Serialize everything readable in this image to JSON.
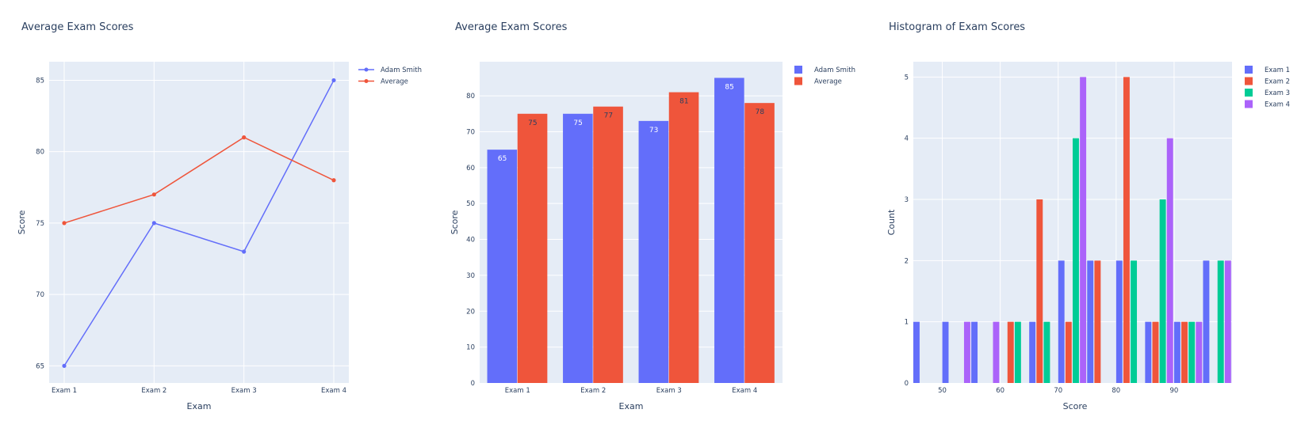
{
  "chart_data": [
    {
      "type": "line",
      "title": "Average Exam Scores",
      "xlabel": "Exam",
      "ylabel": "Score",
      "categories": [
        "Exam 1",
        "Exam 2",
        "Exam 3",
        "Exam 4"
      ],
      "ylim": [
        63.8,
        86.3
      ],
      "yticks": [
        65,
        70,
        75,
        80,
        85
      ],
      "series": [
        {
          "name": "Adam Smith",
          "values": [
            65,
            75,
            73,
            85
          ],
          "color": "#636efa"
        },
        {
          "name": "Average",
          "values": [
            75,
            77,
            81,
            78
          ],
          "color": "#ef553b"
        }
      ],
      "grid": true,
      "legend": "top-right-outside"
    },
    {
      "type": "bar",
      "title": "Average Exam Scores",
      "xlabel": "Exam",
      "ylabel": "Score",
      "categories": [
        "Exam 1",
        "Exam 2",
        "Exam 3",
        "Exam 4"
      ],
      "ylim": [
        0,
        89.5
      ],
      "yticks": [
        0,
        10,
        20,
        30,
        40,
        50,
        60,
        70,
        80
      ],
      "series": [
        {
          "name": "Adam Smith",
          "values": [
            65,
            75,
            73,
            85
          ],
          "color": "#636efa",
          "label_color": "#ffffff"
        },
        {
          "name": "Average",
          "values": [
            75,
            77,
            81,
            78
          ],
          "color": "#ef553b",
          "label_color": "#2a3f5f"
        }
      ],
      "grid": true,
      "legend": "top-right-outside"
    },
    {
      "type": "bar",
      "subtype": "histogram",
      "title": "Histogram of Exam Scores",
      "xlabel": "Score",
      "ylabel": "Count",
      "xlim": [
        45,
        100
      ],
      "xticks": [
        50,
        60,
        70,
        80,
        90
      ],
      "ylim": [
        0,
        5.25
      ],
      "yticks": [
        0,
        1,
        2,
        3,
        4,
        5
      ],
      "bin_starts": [
        45,
        50,
        55,
        60,
        65,
        70,
        75,
        80,
        85,
        90,
        95
      ],
      "bin_width": 5,
      "series": [
        {
          "name": "Exam 1",
          "values": [
            1,
            1,
            1,
            0,
            1,
            2,
            2,
            2,
            1,
            1,
            2
          ],
          "color": "#636efa"
        },
        {
          "name": "Exam 2",
          "values": [
            0,
            0,
            0,
            1,
            3,
            1,
            2,
            5,
            1,
            1,
            0
          ],
          "color": "#ef553b"
        },
        {
          "name": "Exam 3",
          "values": [
            0,
            0,
            0,
            1,
            1,
            4,
            0,
            2,
            3,
            1,
            2
          ],
          "color": "#00cc96"
        },
        {
          "name": "Exam 4",
          "values": [
            0,
            1,
            1,
            0,
            0,
            5,
            0,
            0,
            4,
            1,
            2
          ],
          "color": "#ab63fa"
        }
      ],
      "grid": true,
      "legend": "top-right-outside"
    }
  ]
}
